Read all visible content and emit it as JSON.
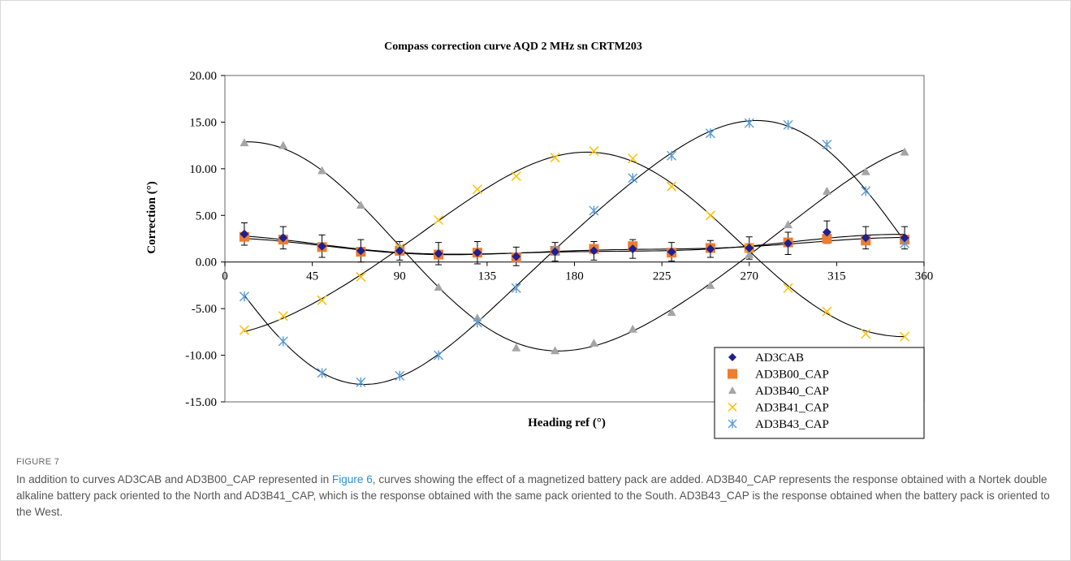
{
  "figure": {
    "label": "FIGURE 7",
    "caption_before": "In addition to curves AD3CAB and AD3B00_CAP represented in ",
    "caption_link": "Figure 6",
    "caption_after": ", curves showing the effect of a magnetized battery pack are added. AD3B40_CAP represents the response obtained with a Nortek double alkaline battery pack oriented to the North and AD3B41_CAP, which is the response obtained with the same pack oriented to the South. AD3B43_CAP is the response obtained when the battery pack is oriented to the West."
  },
  "chart_data": {
    "type": "scatter",
    "title": "Compass correction curve AQD 2 MHz sn CRTM203",
    "xlabel": "Heading ref (°)",
    "ylabel": "Correction (°)",
    "xlim": [
      0,
      360
    ],
    "ylim": [
      -15,
      20
    ],
    "x_ticks": [
      "0",
      "45",
      "90",
      "135",
      "180",
      "225",
      "270",
      "315",
      "360"
    ],
    "y_ticks": [
      "20.00",
      "15.00",
      "10.00",
      "5.00",
      "0.00",
      "-5.00",
      "-10.00",
      "-15.00"
    ],
    "grid": false,
    "legend_position": "bottom-right",
    "series": [
      {
        "name": "AD3CAB",
        "marker": "diamond",
        "color": "#1f1f8f",
        "x": [
          10,
          30,
          50,
          70,
          90,
          110,
          130,
          150,
          170,
          190,
          210,
          230,
          250,
          270,
          290,
          310,
          330,
          350
        ],
        "y": [
          3.0,
          2.6,
          1.7,
          1.2,
          1.2,
          0.9,
          1.0,
          0.6,
          1.1,
          1.2,
          1.4,
          1.1,
          1.4,
          1.5,
          2.0,
          3.2,
          2.6,
          2.6
        ],
        "error": [
          1.2,
          1.2,
          1.2,
          1.2,
          1.0,
          1.2,
          1.2,
          1.0,
          1.0,
          1.0,
          1.0,
          1.0,
          0.9,
          1.2,
          1.2,
          1.2,
          1.2,
          1.2
        ]
      },
      {
        "name": "AD3B00_CAP",
        "marker": "square",
        "color": "#ed7d31",
        "x": [
          10,
          30,
          50,
          70,
          90,
          110,
          130,
          150,
          170,
          190,
          210,
          230,
          250,
          270,
          290,
          310,
          330,
          350
        ],
        "y": [
          2.7,
          2.4,
          1.6,
          1.1,
          1.2,
          0.8,
          1.0,
          0.5,
          1.2,
          1.4,
          1.7,
          1.0,
          1.5,
          1.5,
          2.1,
          2.5,
          2.3,
          2.4
        ]
      },
      {
        "name": "AD3B40_CAP",
        "marker": "triangle",
        "color": "#a5a5a5",
        "x": [
          10,
          30,
          50,
          70,
          90,
          110,
          130,
          150,
          170,
          190,
          210,
          230,
          250,
          270,
          290,
          310,
          330,
          350
        ],
        "y": [
          12.8,
          12.5,
          9.8,
          6.1,
          1.6,
          -2.7,
          -6.0,
          -9.2,
          -9.5,
          -8.7,
          -7.2,
          -5.4,
          -2.5,
          0.8,
          4.0,
          7.6,
          9.7,
          11.8
        ]
      },
      {
        "name": "AD3B41_CAP",
        "marker": "x",
        "color": "#ffc000",
        "x": [
          10,
          30,
          50,
          70,
          90,
          110,
          130,
          150,
          170,
          190,
          210,
          230,
          250,
          270,
          290,
          310,
          330,
          350
        ],
        "y": [
          -7.3,
          -5.8,
          -4.1,
          -1.6,
          1.5,
          4.5,
          7.8,
          9.2,
          11.2,
          11.9,
          11.1,
          8.1,
          5.0,
          1.5,
          -2.8,
          -5.3,
          -7.7,
          -8.0
        ]
      },
      {
        "name": "AD3B43_CAP",
        "marker": "asterisk",
        "color": "#5b9bd5",
        "x": [
          10,
          30,
          50,
          70,
          90,
          110,
          130,
          150,
          170,
          190,
          210,
          230,
          250,
          270,
          290,
          310,
          330,
          350
        ],
        "y": [
          -3.7,
          -8.5,
          -11.9,
          -12.9,
          -12.2,
          -10.0,
          -6.5,
          -2.8,
          1.2,
          5.5,
          9.0,
          11.4,
          13.8,
          14.9,
          14.7,
          12.6,
          7.6,
          2.0
        ]
      }
    ]
  }
}
